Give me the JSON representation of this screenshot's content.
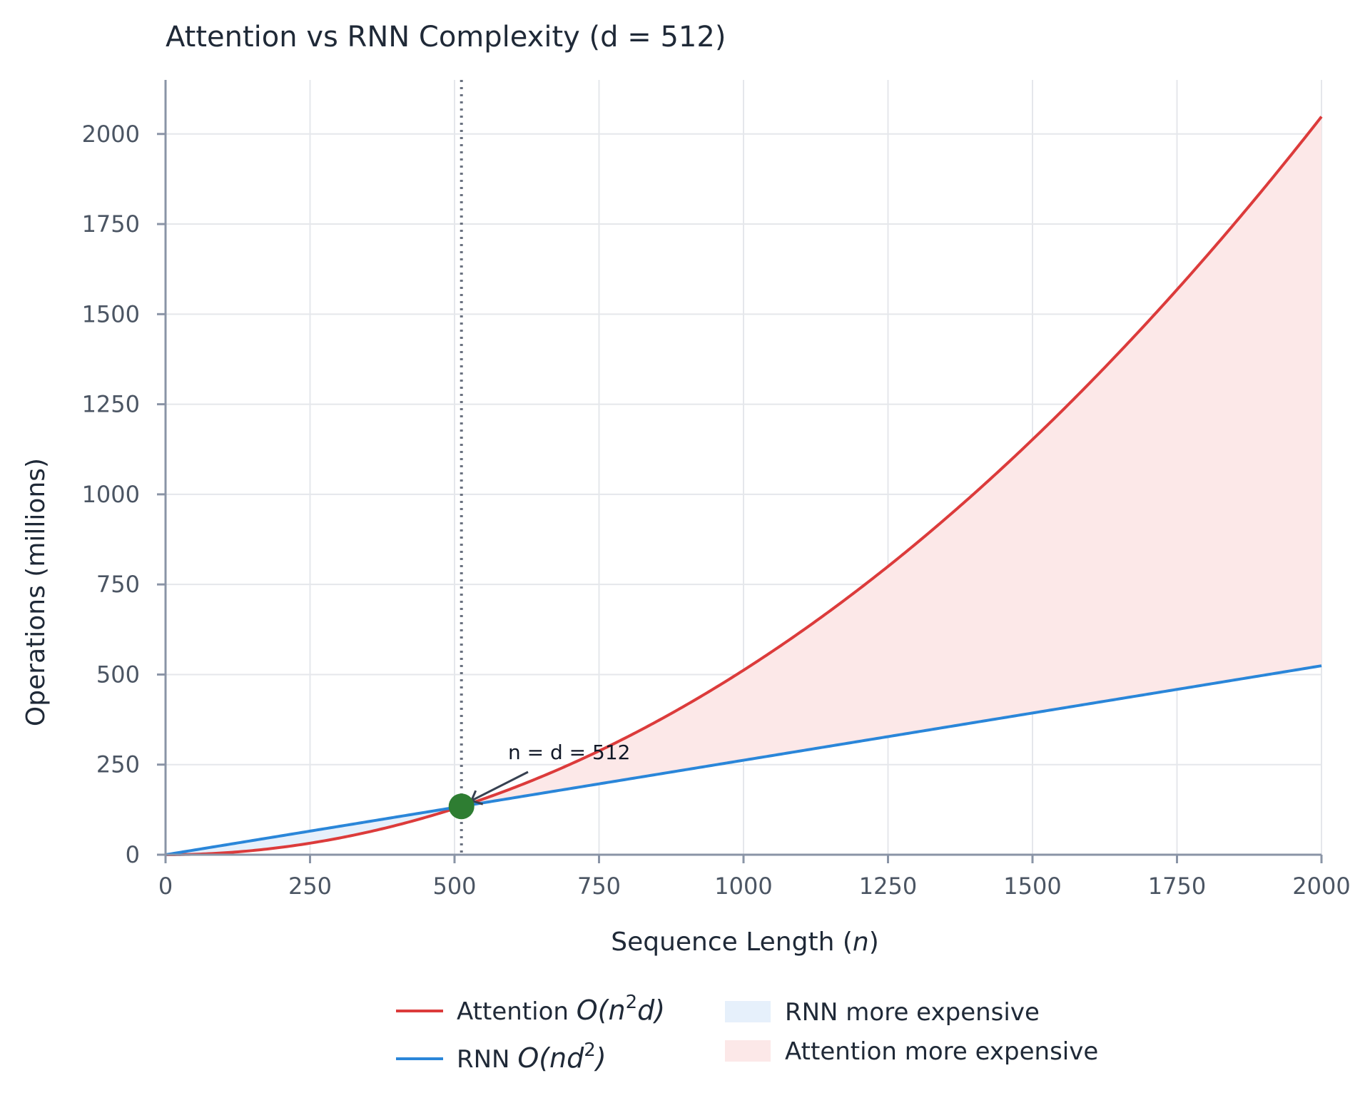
{
  "chart_data": {
    "type": "line",
    "title": "Attention vs RNN Complexity (d = 512)",
    "xlabel": "Sequence Length",
    "xlabel_var": "n",
    "ylabel": "Operations (millions)",
    "xlim": [
      0,
      2000
    ],
    "ylim": [
      0,
      2150
    ],
    "x_ticks": [
      0,
      250,
      500,
      750,
      1000,
      1250,
      1500,
      1750,
      2000
    ],
    "y_ticks": [
      0,
      250,
      500,
      750,
      1000,
      1250,
      1500,
      1750,
      2000
    ],
    "grid": true,
    "d": 512,
    "x": [
      0,
      100,
      200,
      300,
      400,
      512,
      600,
      700,
      800,
      900,
      1000,
      1100,
      1200,
      1300,
      1400,
      1500,
      1600,
      1700,
      1800,
      1900,
      2000
    ],
    "series": [
      {
        "name": "Attention O(n²d)",
        "label_text": "Attention ",
        "label_math": "O(n",
        "label_sup": "2",
        "label_math_end": "d)",
        "color": "#dc3b3b",
        "values": [
          0,
          5.1,
          20.5,
          46.1,
          81.9,
          134.2,
          184.3,
          250.9,
          327.7,
          414.7,
          512.0,
          619.5,
          737.3,
          865.3,
          1003.5,
          1152.0,
          1310.7,
          1479.7,
          1658.9,
          1848.3,
          2048.0
        ]
      },
      {
        "name": "RNN O(nd²)",
        "label_text": "RNN ",
        "label_math": "O(nd",
        "label_sup": "2",
        "label_math_end": ")",
        "color": "#2a86d9",
        "values": [
          0,
          26.2,
          52.4,
          78.6,
          104.9,
          134.2,
          157.3,
          183.5,
          209.7,
          235.9,
          262.1,
          288.4,
          314.6,
          340.8,
          367.0,
          393.2,
          419.4,
          445.6,
          471.9,
          498.1,
          524.3
        ]
      }
    ],
    "regions": [
      {
        "name": "RNN more expensive",
        "color": "#e6f0fb",
        "x_range": [
          0,
          512
        ]
      },
      {
        "name": "Attention more expensive",
        "color": "#fce8e8",
        "x_range": [
          512,
          2000
        ]
      }
    ],
    "crossover": {
      "x": 512,
      "y": 134.2,
      "color": "#2e7d32",
      "label": "n = d = 512"
    },
    "legend_position": "bottom-center"
  }
}
